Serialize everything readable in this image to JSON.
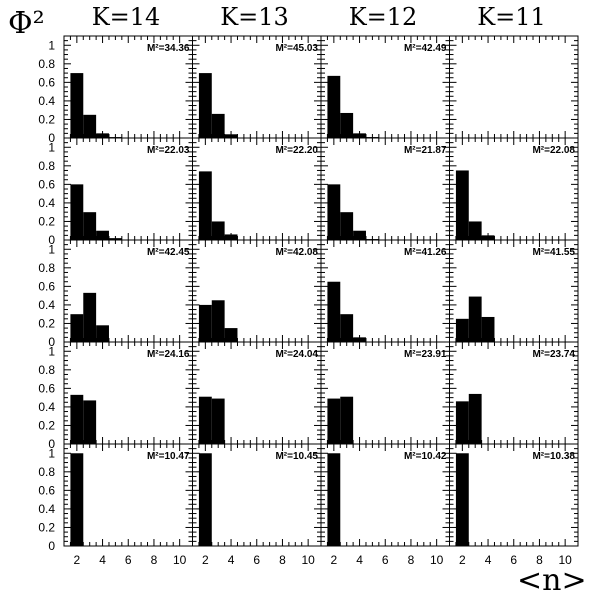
{
  "chart_data": {
    "type": "bar",
    "ylabel": "Φ²",
    "xlabel": "<n>",
    "column_titles": [
      "K=14",
      "K=13",
      "K=12",
      "K=11"
    ],
    "x_ticks": [
      "2",
      "4",
      "6",
      "8",
      "10"
    ],
    "y_ticks": [
      "0",
      "0.2",
      "0.4",
      "0.6",
      "0.8",
      "1"
    ],
    "xlim": [
      1,
      11
    ],
    "ylim": [
      0,
      1.1
    ],
    "bar_x": [
      2,
      3,
      4,
      5
    ],
    "panels": [
      [
        {
          "label": "M²=34.36",
          "values": [
            0.7,
            0.25,
            0.05,
            0.01
          ]
        },
        {
          "label": "M²=45.03",
          "values": [
            0.7,
            0.26,
            0.04,
            0.0
          ]
        },
        {
          "label": "M²=42.49",
          "values": [
            0.67,
            0.27,
            0.05,
            0.01
          ]
        },
        {
          "label": "",
          "values": []
        }
      ],
      [
        {
          "label": "M²=22.03",
          "values": [
            0.6,
            0.3,
            0.1,
            0.02
          ]
        },
        {
          "label": "M²=22.20",
          "values": [
            0.74,
            0.2,
            0.06,
            0.0
          ]
        },
        {
          "label": "M²=21.87",
          "values": [
            0.6,
            0.3,
            0.1,
            0.01
          ]
        },
        {
          "label": "M²=22.08",
          "values": [
            0.75,
            0.2,
            0.05,
            0.0
          ]
        }
      ],
      [
        {
          "label": "M²=42.45",
          "values": [
            0.3,
            0.53,
            0.18,
            0.0
          ]
        },
        {
          "label": "M²=42.08",
          "values": [
            0.4,
            0.45,
            0.15,
            0.0
          ]
        },
        {
          "label": "M²=41.26",
          "values": [
            0.65,
            0.3,
            0.05,
            0.0
          ]
        },
        {
          "label": "M²=41.55",
          "values": [
            0.25,
            0.49,
            0.27,
            0.0
          ]
        }
      ],
      [
        {
          "label": "M²=24.16",
          "values": [
            0.53,
            0.47
          ]
        },
        {
          "label": "M²=24.04",
          "values": [
            0.51,
            0.49
          ]
        },
        {
          "label": "M²=23.91",
          "values": [
            0.49,
            0.51
          ]
        },
        {
          "label": "M²=23.74",
          "values": [
            0.46,
            0.54
          ]
        }
      ],
      [
        {
          "label": "M²=10.47",
          "values": [
            1.0
          ]
        },
        {
          "label": "M²=10.45",
          "values": [
            1.0
          ]
        },
        {
          "label": "M²=10.42",
          "values": [
            1.0
          ]
        },
        {
          "label": "M²=10.38",
          "values": [
            1.0
          ]
        }
      ]
    ]
  }
}
